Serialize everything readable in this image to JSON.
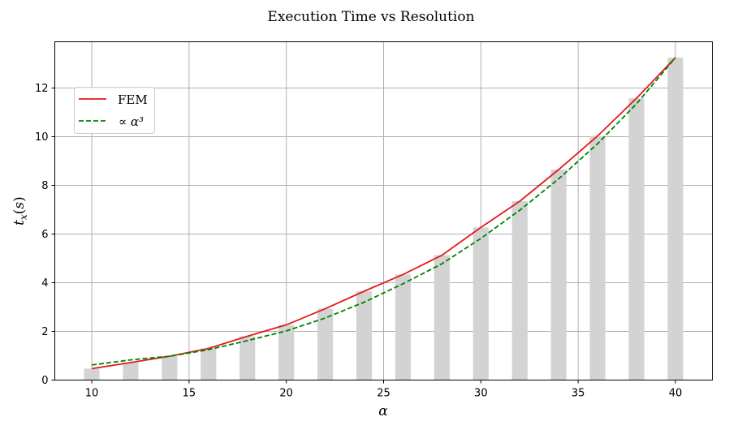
{
  "chart_data": {
    "type": "line",
    "title": "Execution Time vs Resolution",
    "xlabel": "α",
    "ylabel": "t_x(s)",
    "xlim": [
      8.1,
      41.9
    ],
    "ylim": [
      0,
      13.9
    ],
    "xticks": [
      10,
      15,
      20,
      25,
      30,
      35,
      40
    ],
    "yticks": [
      0,
      2,
      4,
      6,
      8,
      10,
      12
    ],
    "grid": true,
    "legend_placement": "upper-left",
    "x": [
      10,
      12,
      14,
      16,
      18,
      20,
      22,
      24,
      26,
      28,
      30,
      32,
      34,
      36,
      38,
      40
    ],
    "series": [
      {
        "name": "FEM",
        "style": "solid",
        "color": "#e41a1c",
        "values": [
          0.47,
          0.72,
          0.98,
          1.3,
          1.8,
          2.27,
          2.93,
          3.65,
          4.34,
          5.13,
          6.27,
          7.35,
          8.65,
          10.03,
          11.58,
          13.25
        ]
      },
      {
        "name": "∝ α³",
        "style": "dashed",
        "color": "#008000",
        "values": [
          0.62,
          0.83,
          0.98,
          1.25,
          1.62,
          2.02,
          2.55,
          3.2,
          3.96,
          4.78,
          5.82,
          6.98,
          8.27,
          9.71,
          11.35,
          13.25
        ]
      }
    ],
    "bars": {
      "color": "#d3d3d3",
      "values": [
        0.47,
        0.72,
        0.98,
        1.3,
        1.8,
        2.27,
        2.93,
        3.65,
        4.34,
        5.13,
        6.27,
        7.35,
        8.65,
        10.03,
        11.58,
        13.25
      ]
    }
  }
}
